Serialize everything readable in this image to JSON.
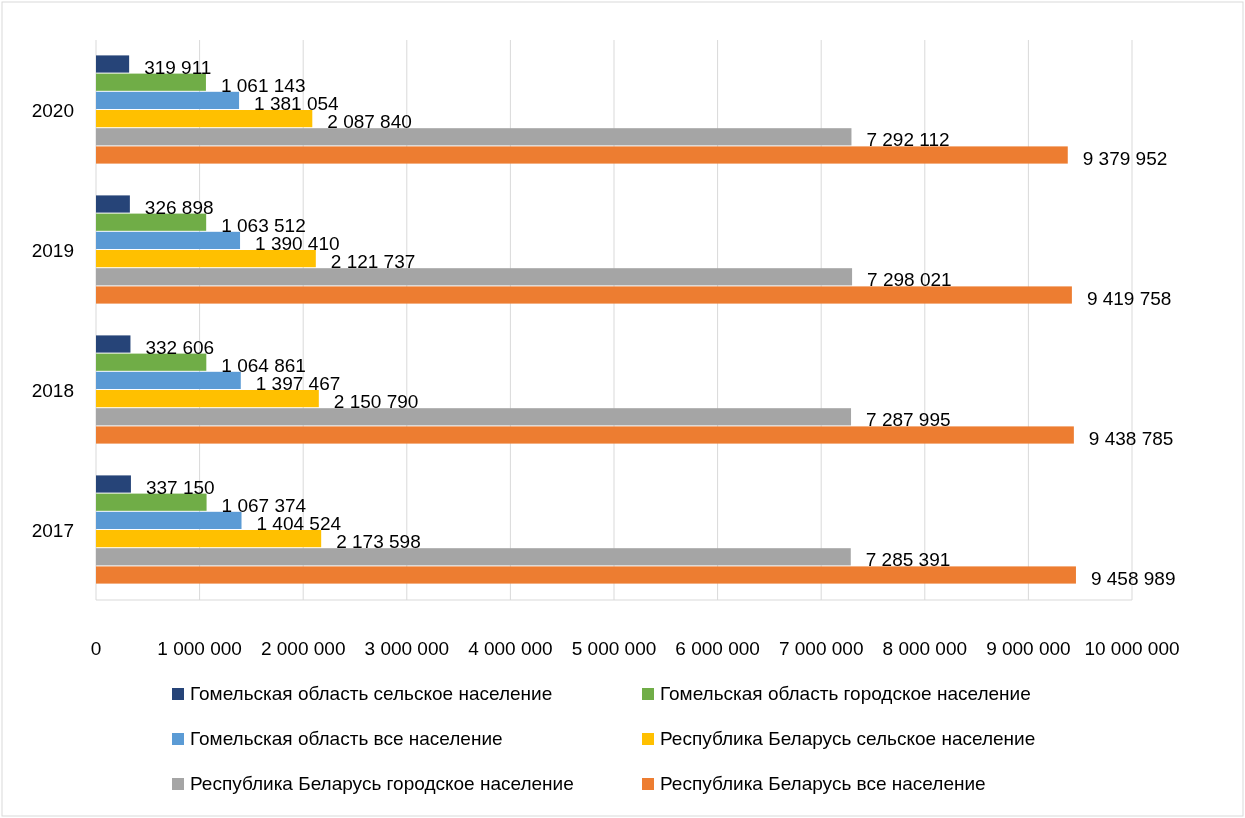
{
  "chart_data": {
    "type": "bar",
    "orientation": "horizontal",
    "categories": [
      "2020",
      "2019",
      "2018",
      "2017"
    ],
    "series": [
      {
        "name": "Гомельская область сельское население",
        "color": "#264478",
        "values": [
          319911,
          326898,
          332606,
          337150
        ],
        "value_labels": [
          "319 911",
          "326 898",
          "332 606",
          "337 150"
        ]
      },
      {
        "name": "Гомельская область городское население",
        "color": "#70ad47",
        "values": [
          1061143,
          1063512,
          1064861,
          1067374
        ],
        "value_labels": [
          "1 061 143",
          "1 063 512",
          "1 064 861",
          "1 067 374"
        ]
      },
      {
        "name": "Гомельская область все население",
        "color": "#5b9bd5",
        "values": [
          1381054,
          1390410,
          1397467,
          1404524
        ],
        "value_labels": [
          "1 381 054",
          "1 390 410",
          "1 397 467",
          "1 404 524"
        ]
      },
      {
        "name": "Республика Беларусь сельское население",
        "color": "#ffc000",
        "values": [
          2087840,
          2121737,
          2150790,
          2173598
        ],
        "value_labels": [
          "2 087 840",
          "2 121 737",
          "2 150 790",
          "2 173 598"
        ]
      },
      {
        "name": "Республика Беларусь городское население",
        "color": "#a5a5a5",
        "values": [
          7292112,
          7298021,
          7287995,
          7285391
        ],
        "value_labels": [
          "7 292 112",
          "7 298 021",
          "7 287 995",
          "7 285 391"
        ]
      },
      {
        "name": "Республика Беларусь все население",
        "color": "#ed7d31",
        "values": [
          9379952,
          9419758,
          9438785,
          9458989
        ],
        "value_labels": [
          "9 379 952",
          "9 419 758",
          "9 438 785",
          "9 458 989"
        ]
      }
    ],
    "xlim": [
      0,
      10000000
    ],
    "xticks": [
      0,
      {
        "value": 1000000,
        "label": "1 000 000"
      },
      {
        "value": 2000000,
        "label": "2 000 000"
      },
      {
        "value": 3000000,
        "label": "3 000 000"
      },
      {
        "value": 4000000,
        "label": "4 000 000"
      },
      {
        "value": 5000000,
        "label": "5 000 000"
      },
      {
        "value": 6000000,
        "label": "6 000 000"
      },
      {
        "value": 7000000,
        "label": "7 000 000"
      },
      {
        "value": 8000000,
        "label": "8 000 000"
      },
      {
        "value": 9000000,
        "label": "9 000 000"
      },
      {
        "value": 10000000,
        "label": "10 000 000"
      }
    ],
    "grid": "x",
    "legend": "bottom"
  }
}
